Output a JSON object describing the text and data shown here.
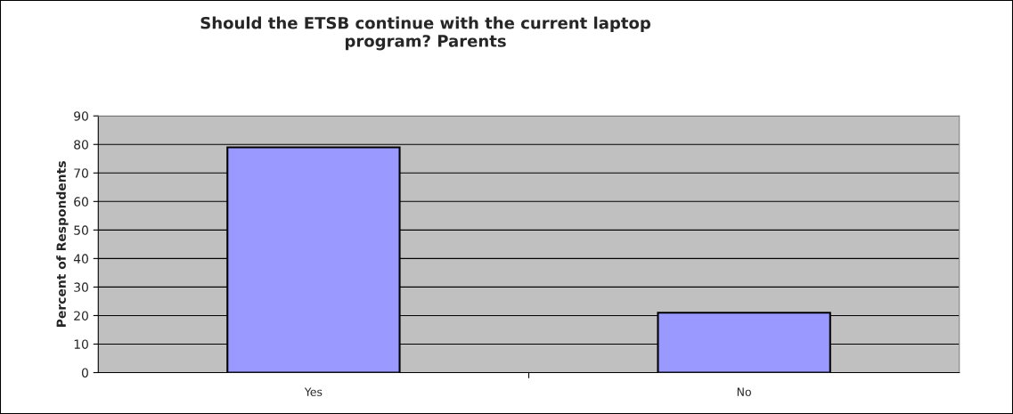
{
  "chart_data": {
    "type": "bar",
    "title": "Should the ETSB continue with the current laptop\nprogram? Parents",
    "ylabel": "Percent of Respondents",
    "categories": [
      "Yes",
      "No"
    ],
    "values": [
      79,
      21
    ],
    "color": "#9999ff",
    "ylim": [
      0,
      90
    ],
    "yticks": [
      0,
      10,
      20,
      30,
      40,
      50,
      60,
      70,
      80,
      90
    ],
    "grid": "y"
  }
}
